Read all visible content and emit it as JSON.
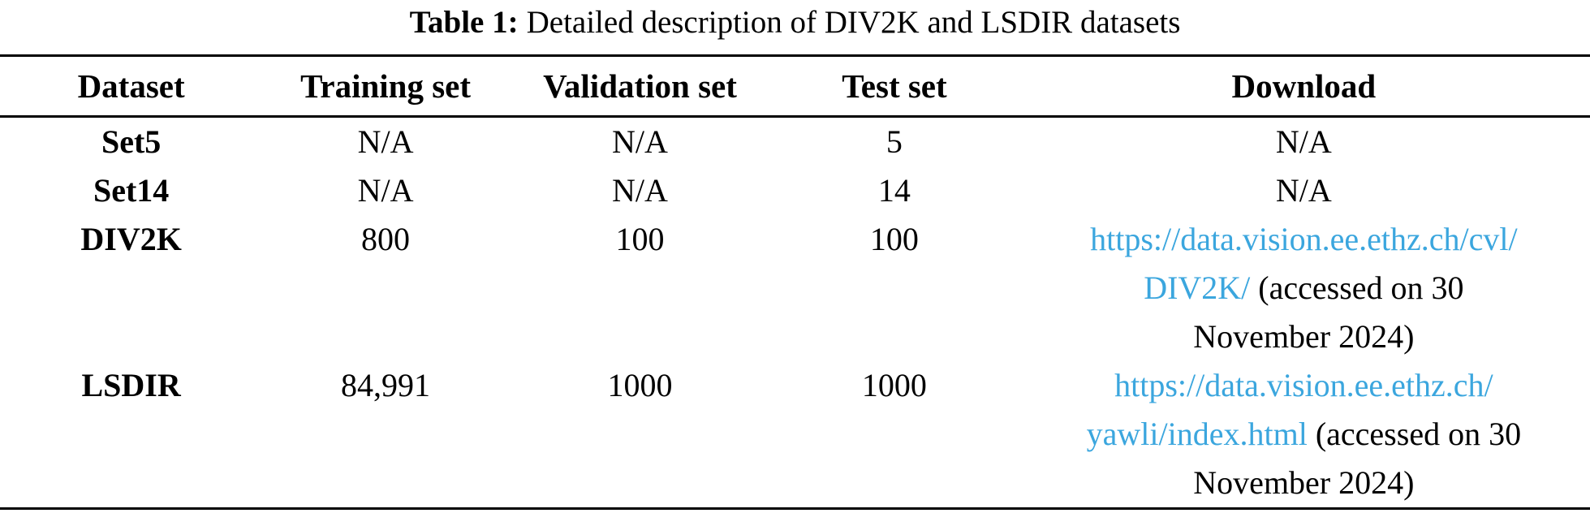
{
  "caption": {
    "label": "Table 1:",
    "text": "Detailed description of DIV2K and LSDIR datasets"
  },
  "colors": {
    "link_blue": "#3ba6de",
    "text": "#000000",
    "rule": "#000000",
    "background": "#ffffff"
  },
  "table": {
    "columns": [
      "Dataset",
      "Training set",
      "Validation set",
      "Test set",
      "Download"
    ],
    "rows": [
      {
        "dataset": "Set5",
        "training": "N/A",
        "validation": "N/A",
        "test": "5",
        "download": "N/A"
      },
      {
        "dataset": "Set14",
        "training": "N/A",
        "validation": "N/A",
        "test": "14",
        "download": "N/A"
      },
      {
        "dataset": "DIV2K",
        "training": "800",
        "validation": "100",
        "test": "100",
        "download": {
          "lines": [
            {
              "link": "https://data.vision.ee.ethz.ch/cvl/",
              "plain": ""
            },
            {
              "link": "DIV2K/",
              "plain": " (accessed on 30"
            },
            {
              "link": "",
              "plain": "November 2024)"
            }
          ]
        }
      },
      {
        "dataset": "LSDIR",
        "training": "84,991",
        "validation": "1000",
        "test": "1000",
        "download": {
          "lines": [
            {
              "link": "https://data.vision.ee.ethz.ch/",
              "plain": ""
            },
            {
              "link": "yawli/index.html",
              "plain": " (accessed on 30"
            },
            {
              "link": "",
              "plain": "November 2024)"
            }
          ]
        }
      }
    ]
  }
}
